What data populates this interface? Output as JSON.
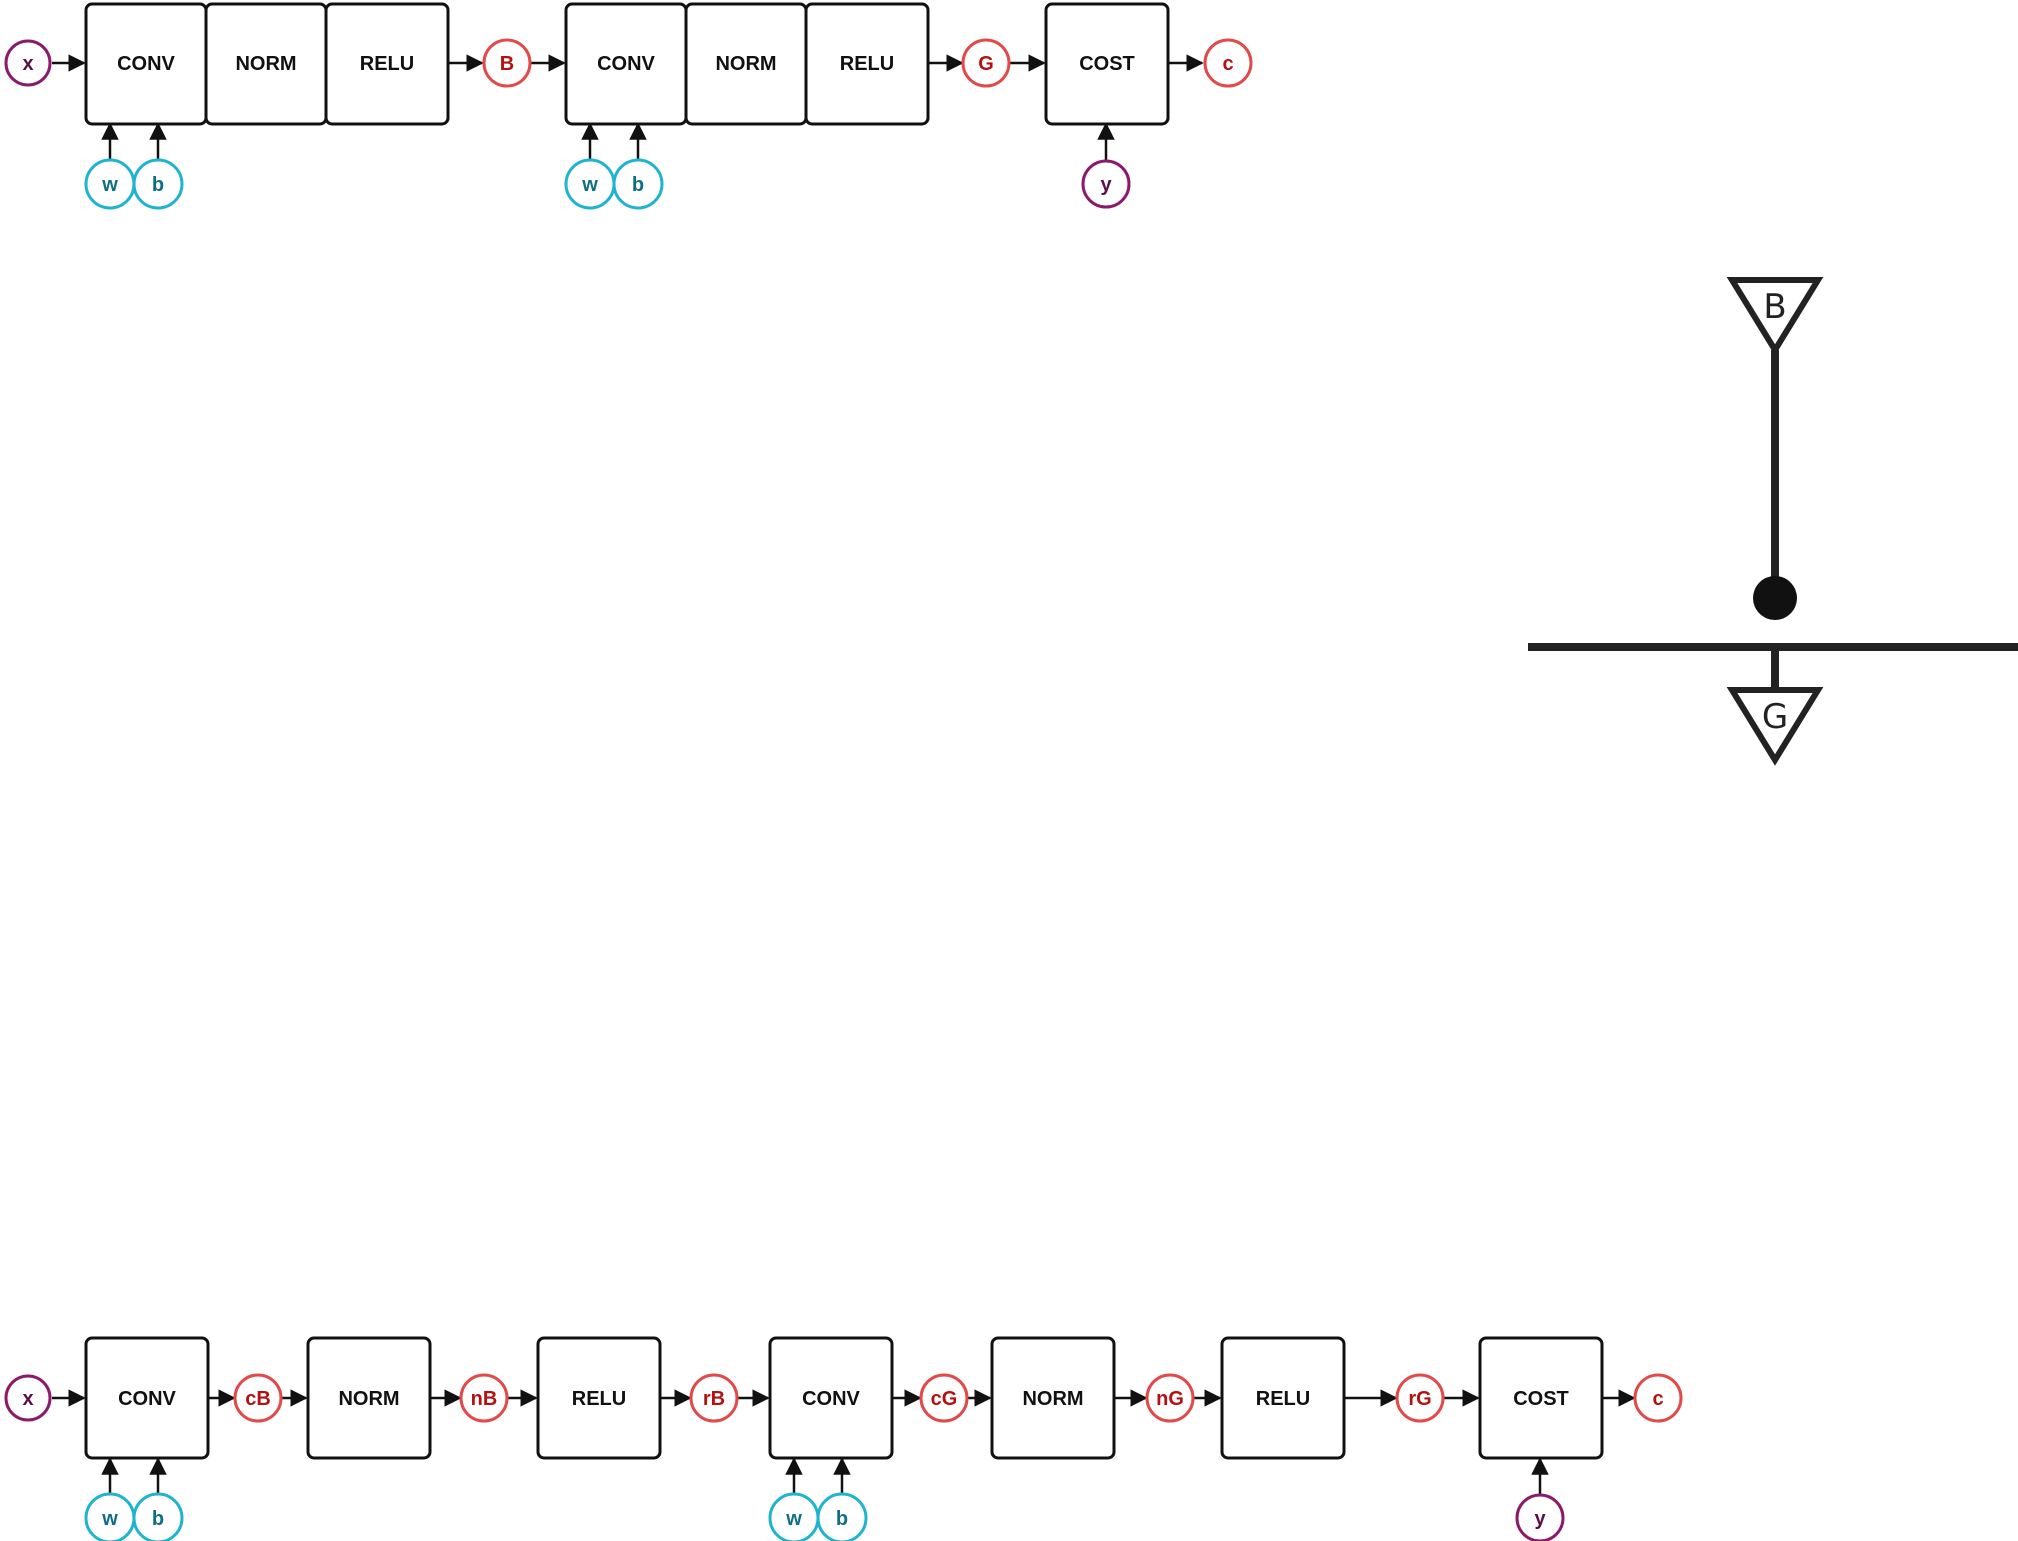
{
  "colors": {
    "input": "#8b1a6b",
    "param": "#1fb3cf",
    "param_text": "#0f6f82",
    "intermediate": "#e24a4a",
    "intermediate_text": "#b31212",
    "stroke": "#111111"
  },
  "top_chain": {
    "input": "x",
    "block1": [
      "CONV",
      "NORM",
      "RELU"
    ],
    "block1_params": [
      "w",
      "b"
    ],
    "out1": "B",
    "block2": [
      "CONV",
      "NORM",
      "RELU"
    ],
    "block2_params": [
      "w",
      "b"
    ],
    "out2": "G",
    "cost": "COST",
    "label": "y",
    "output": "c"
  },
  "symbol": {
    "top_label": "B",
    "bottom_label": "G"
  },
  "bottom_chain": {
    "input": "x",
    "conv1": "CONV",
    "conv1_params": [
      "w",
      "b"
    ],
    "cB": "cB",
    "norm1": "NORM",
    "nB": "nB",
    "relu1": "RELU",
    "rB": "rB",
    "conv2": "CONV",
    "conv2_params": [
      "w",
      "b"
    ],
    "cG": "cG",
    "norm2": "NORM",
    "nG": "nG",
    "relu2": "RELU",
    "rG": "rG",
    "cost": "COST",
    "label": "y",
    "output": "c"
  }
}
